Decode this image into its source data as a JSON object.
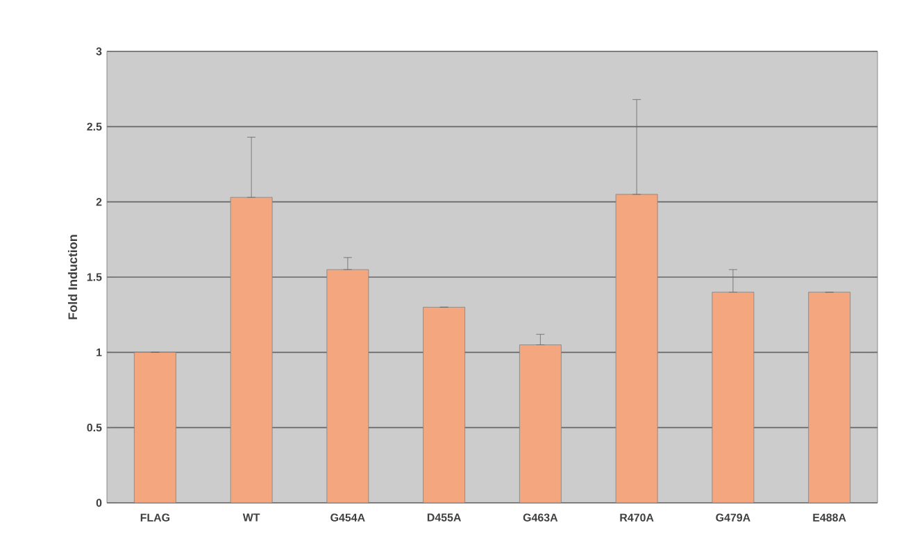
{
  "chart_data": {
    "type": "bar",
    "ylabel": "Fold Induction",
    "categories": [
      "FLAG",
      "WT",
      "G454A",
      "D455A",
      "G463A",
      "R470A",
      "G479A",
      "E488A"
    ],
    "values": [
      1.0,
      2.03,
      1.55,
      1.3,
      1.05,
      2.05,
      1.4,
      1.4
    ],
    "errors": [
      null,
      [
        2.03,
        2.43
      ],
      [
        1.55,
        1.63
      ],
      null,
      [
        1.05,
        1.12
      ],
      [
        2.05,
        2.68
      ],
      [
        1.4,
        1.55
      ],
      null
    ],
    "color": "#f4a67e",
    "ylim": [
      0,
      3
    ],
    "yticks": [
      0,
      0.5,
      1,
      1.5,
      2,
      2.5,
      3
    ],
    "grid": "y"
  }
}
